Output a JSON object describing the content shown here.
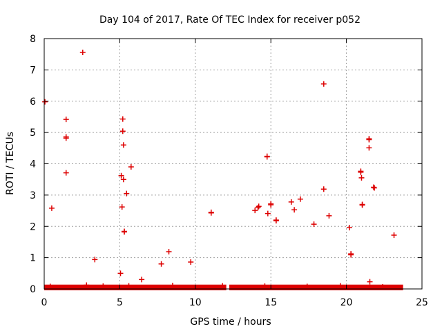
{
  "chart_data": {
    "type": "scatter",
    "title": "Day 104 of 2017, Rate Of TEC Index for receiver p052",
    "xlabel": "GPS time / hours",
    "ylabel": "ROTI / TECUs",
    "xlim": [
      0,
      25
    ],
    "ylim": [
      0,
      8
    ],
    "xticks": [
      "0",
      "5",
      "10",
      "15",
      "20",
      "25"
    ],
    "yticks": [
      "0",
      "1",
      "2",
      "3",
      "4",
      "5",
      "6",
      "7",
      "8"
    ],
    "grid": true,
    "marker": "+",
    "color": "#dd0000",
    "series": [
      {
        "name": "ROTI",
        "points": [
          [
            0.05,
            5.98
          ],
          [
            0.5,
            2.58
          ],
          [
            1.45,
            5.42
          ],
          [
            1.45,
            4.86
          ],
          [
            1.45,
            4.82
          ],
          [
            1.45,
            3.71
          ],
          [
            2.55,
            7.56
          ],
          [
            3.35,
            0.94
          ],
          [
            5.05,
            0.5
          ],
          [
            5.1,
            3.62
          ],
          [
            5.15,
            2.62
          ],
          [
            5.2,
            5.43
          ],
          [
            5.2,
            5.04
          ],
          [
            5.25,
            4.6
          ],
          [
            5.25,
            3.5
          ],
          [
            5.3,
            1.82
          ],
          [
            5.3,
            1.84
          ],
          [
            5.45,
            3.05
          ],
          [
            5.75,
            3.9
          ],
          [
            6.45,
            0.3
          ],
          [
            7.75,
            0.8
          ],
          [
            8.25,
            1.19
          ],
          [
            9.7,
            0.86
          ],
          [
            11.05,
            2.43
          ],
          [
            11.05,
            2.45
          ],
          [
            13.95,
            2.51
          ],
          [
            14.15,
            2.6
          ],
          [
            14.2,
            2.64
          ],
          [
            14.75,
            4.24
          ],
          [
            14.75,
            4.22
          ],
          [
            14.8,
            2.41
          ],
          [
            15.0,
            2.69
          ],
          [
            15.0,
            2.72
          ],
          [
            15.35,
            2.2
          ],
          [
            15.35,
            2.18
          ],
          [
            16.35,
            2.78
          ],
          [
            16.55,
            2.53
          ],
          [
            16.95,
            2.87
          ],
          [
            17.85,
            2.07
          ],
          [
            18.5,
            6.55
          ],
          [
            18.5,
            3.19
          ],
          [
            18.85,
            2.34
          ],
          [
            20.2,
            1.96
          ],
          [
            20.3,
            1.12
          ],
          [
            20.3,
            1.09
          ],
          [
            20.95,
            3.76
          ],
          [
            20.95,
            3.73
          ],
          [
            21.0,
            3.55
          ],
          [
            21.05,
            2.7
          ],
          [
            21.05,
            2.68
          ],
          [
            21.5,
            4.8
          ],
          [
            21.5,
            4.77
          ],
          [
            21.5,
            4.51
          ],
          [
            21.55,
            0.23
          ],
          [
            21.8,
            3.25
          ],
          [
            21.85,
            3.23
          ],
          [
            23.15,
            1.72
          ],
          [
            0.4,
            0.08
          ],
          [
            2.8,
            0.12
          ],
          [
            3.9,
            0.09
          ],
          [
            5.6,
            0.1
          ],
          [
            8.5,
            0.11
          ],
          [
            11.8,
            0.1
          ],
          [
            14.6,
            0.09
          ],
          [
            17.4,
            0.08
          ],
          [
            19.6,
            0.1
          ],
          [
            22.4,
            0.07
          ]
        ],
        "baseline_band": {
          "segments": [
            [
              0.0,
              12.05
            ],
            [
              12.25,
              23.75
            ]
          ],
          "y_range": [
            0.0,
            0.05
          ]
        }
      }
    ]
  }
}
